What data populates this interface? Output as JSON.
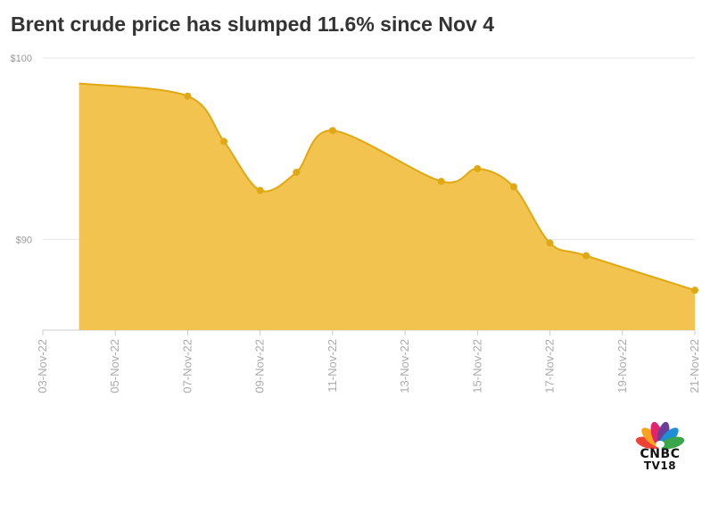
{
  "title": "Brent crude price has slumped 11.6% since Nov 4",
  "logo": {
    "line1": "CNBC",
    "line2": "TV18"
  },
  "colors": {
    "area_fill": "#f2c44f",
    "line": "#e2a810",
    "marker": "#e0a812",
    "grid": "#e6e6e6",
    "axis": "#cccccc",
    "title": "#333333",
    "tick": "#aaaaaa"
  },
  "chart_data": {
    "type": "area",
    "title": "Brent crude price has slumped 11.6% since Nov 4",
    "xlabel": "",
    "ylabel": "",
    "x_ticks": [
      "03-Nov-22",
      "05-Nov-22",
      "07-Nov-22",
      "09-Nov-22",
      "11-Nov-22",
      "13-Nov-22",
      "15-Nov-22",
      "17-Nov-22",
      "19-Nov-22",
      "21-Nov-22"
    ],
    "y_ticks": [
      {
        "value": 90,
        "label": "$90"
      },
      {
        "value": 100,
        "label": "$100"
      }
    ],
    "xlim": [
      "03-Nov-22",
      "21-Nov-22"
    ],
    "ylim": [
      85,
      100
    ],
    "grid": true,
    "legend": "none",
    "series": [
      {
        "points": [
          {
            "x": "04-Nov-22",
            "y": 98.6,
            "marker": false
          },
          {
            "x": "07-Nov-22",
            "y": 97.9,
            "marker": true
          },
          {
            "x": "08-Nov-22",
            "y": 95.4,
            "marker": true
          },
          {
            "x": "09-Nov-22",
            "y": 92.7,
            "marker": true
          },
          {
            "x": "10-Nov-22",
            "y": 93.7,
            "marker": true
          },
          {
            "x": "11-Nov-22",
            "y": 96.0,
            "marker": true
          },
          {
            "x": "14-Nov-22",
            "y": 93.2,
            "marker": true
          },
          {
            "x": "15-Nov-22",
            "y": 93.9,
            "marker": true
          },
          {
            "x": "16-Nov-22",
            "y": 92.9,
            "marker": true
          },
          {
            "x": "17-Nov-22",
            "y": 89.8,
            "marker": true
          },
          {
            "x": "18-Nov-22",
            "y": 89.1,
            "marker": true
          },
          {
            "x": "21-Nov-22",
            "y": 87.2,
            "marker": true
          }
        ]
      }
    ]
  }
}
